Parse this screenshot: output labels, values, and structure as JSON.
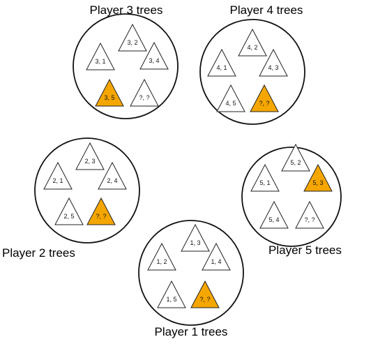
{
  "colors": {
    "unknown_fill": "#F5A600",
    "known_fill": "#ffffff",
    "outline": "#111111"
  },
  "groups": [
    {
      "title": "Player 3 trees",
      "trees": [
        {
          "label": "3, 2",
          "highlight": false
        },
        {
          "label": "3, 1",
          "highlight": false
        },
        {
          "label": "3, 4",
          "highlight": false
        },
        {
          "label": "3, 5",
          "highlight": true
        },
        {
          "label": "?, ?",
          "highlight": false
        }
      ]
    },
    {
      "title": "Player 4 trees",
      "trees": [
        {
          "label": "4, 2",
          "highlight": false
        },
        {
          "label": "4, 1",
          "highlight": false
        },
        {
          "label": "4, 3",
          "highlight": false
        },
        {
          "label": "4, 5",
          "highlight": false
        },
        {
          "label": "?, ?",
          "highlight": true
        }
      ]
    },
    {
      "title": "Player 2 trees",
      "trees": [
        {
          "label": "2, 3",
          "highlight": false
        },
        {
          "label": "2, 1",
          "highlight": false
        },
        {
          "label": "2, 4",
          "highlight": false
        },
        {
          "label": "2, 5",
          "highlight": false
        },
        {
          "label": "?, ?",
          "highlight": true
        }
      ]
    },
    {
      "title": "Player 5 trees",
      "trees": [
        {
          "label": "5, 2",
          "highlight": false
        },
        {
          "label": "5, 1",
          "highlight": false
        },
        {
          "label": "5, 3",
          "highlight": true
        },
        {
          "label": "5, 4",
          "highlight": false
        },
        {
          "label": "?, ?",
          "highlight": false
        }
      ]
    },
    {
      "title": "Player 1 trees",
      "trees": [
        {
          "label": "1, 3",
          "highlight": false
        },
        {
          "label": "1, 2",
          "highlight": false
        },
        {
          "label": "1, 4",
          "highlight": false
        },
        {
          "label": "1, 5",
          "highlight": false
        },
        {
          "label": "?, ?",
          "highlight": true
        }
      ]
    }
  ]
}
